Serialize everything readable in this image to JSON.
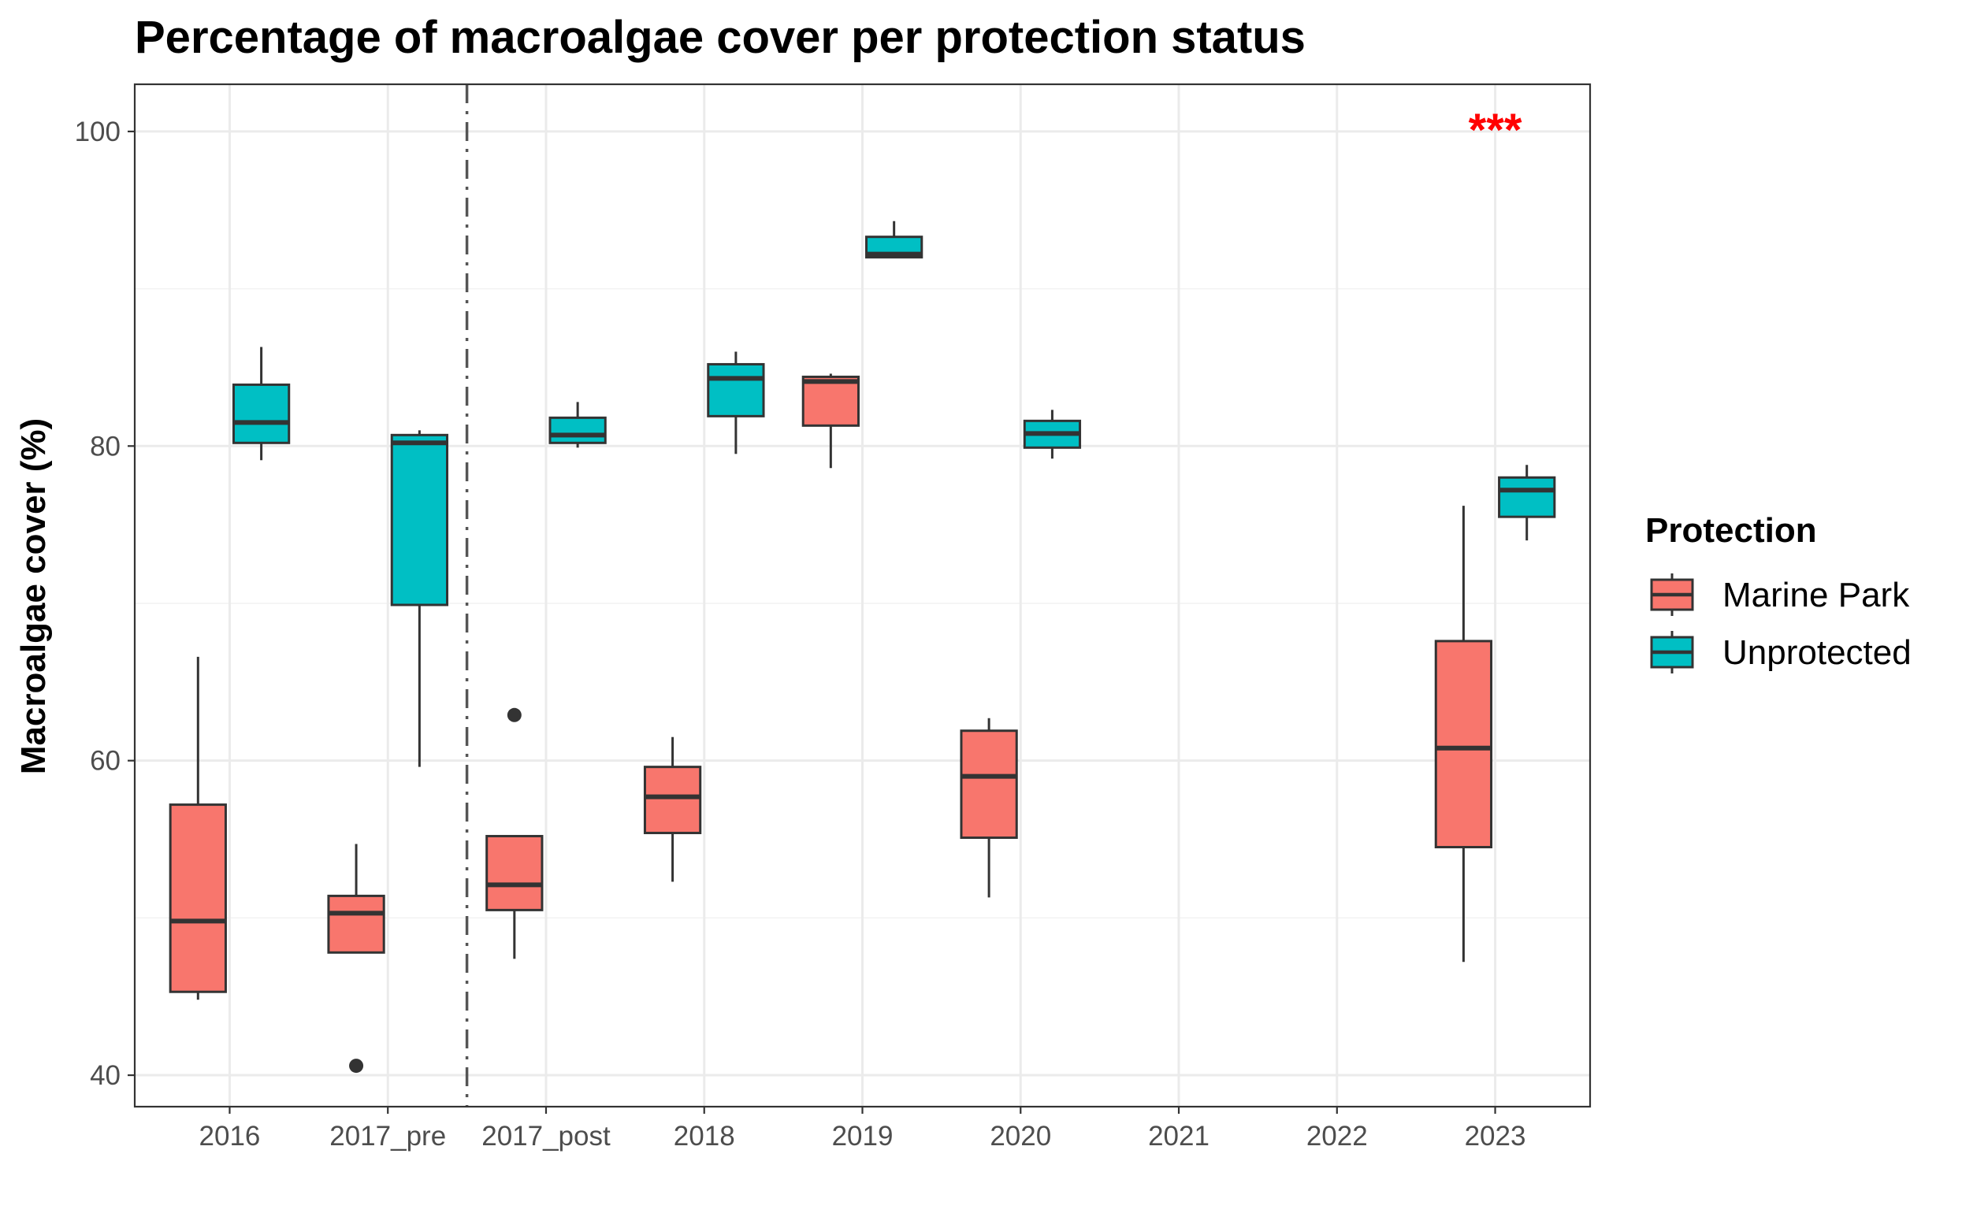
{
  "chart_data": {
    "type": "boxplot",
    "title": "Percentage of macroalgae cover per protection status",
    "xlabel": "",
    "ylabel": "Macroalgae cover (%)",
    "categories": [
      "2016",
      "2017_pre",
      "2017_post",
      "2018",
      "2019",
      "2020",
      "2021",
      "2022",
      "2023"
    ],
    "ylim": [
      38,
      103
    ],
    "yticks": [
      40,
      60,
      80,
      100
    ],
    "grid": true,
    "legend": {
      "title": "Protection",
      "position": "right",
      "entries": [
        "Marine Park",
        "Unprotected"
      ]
    },
    "series": [
      {
        "name": "Marine Park",
        "color": "#F8766D",
        "boxes": [
          {
            "category": "2016",
            "low": 44.8,
            "q1": 45.3,
            "median": 49.8,
            "q3": 57.2,
            "high": 66.6,
            "outliers": []
          },
          {
            "category": "2017_pre",
            "low": 47.8,
            "q1": 47.8,
            "median": 50.3,
            "q3": 51.4,
            "high": 54.7,
            "outliers": [
              40.6
            ]
          },
          {
            "category": "2017_post",
            "low": 47.4,
            "q1": 50.5,
            "median": 52.1,
            "q3": 55.2,
            "high": 55.2,
            "outliers": [
              62.9
            ]
          },
          {
            "category": "2018",
            "low": 52.3,
            "q1": 55.4,
            "median": 57.7,
            "q3": 59.6,
            "high": 61.5,
            "outliers": []
          },
          {
            "category": "2019",
            "low": 78.6,
            "q1": 81.3,
            "median": 84.1,
            "q3": 84.4,
            "high": 84.6,
            "outliers": []
          },
          {
            "category": "2020",
            "low": 51.3,
            "q1": 55.1,
            "median": 59.0,
            "q3": 61.9,
            "high": 62.7,
            "outliers": []
          },
          {
            "category": "2023",
            "low": 47.2,
            "q1": 54.5,
            "median": 60.8,
            "q3": 67.6,
            "high": 76.2,
            "outliers": []
          }
        ]
      },
      {
        "name": "Unprotected",
        "color": "#00BFC4",
        "boxes": [
          {
            "category": "2016",
            "low": 79.1,
            "q1": 80.2,
            "median": 81.5,
            "q3": 83.9,
            "high": 86.3,
            "outliers": []
          },
          {
            "category": "2017_pre",
            "low": 59.6,
            "q1": 69.9,
            "median": 80.2,
            "q3": 80.7,
            "high": 81.0,
            "outliers": []
          },
          {
            "category": "2017_post",
            "low": 79.9,
            "q1": 80.2,
            "median": 80.7,
            "q3": 81.8,
            "high": 82.8,
            "outliers": []
          },
          {
            "category": "2018",
            "low": 79.5,
            "q1": 81.9,
            "median": 84.3,
            "q3": 85.2,
            "high": 86.0,
            "outliers": []
          },
          {
            "category": "2019",
            "low": 92.0,
            "q1": 92.0,
            "median": 92.2,
            "q3": 93.3,
            "high": 94.3,
            "outliers": []
          },
          {
            "category": "2020",
            "low": 79.2,
            "q1": 79.9,
            "median": 80.8,
            "q3": 81.6,
            "high": 82.3,
            "outliers": []
          },
          {
            "category": "2023",
            "low": 74.0,
            "q1": 75.5,
            "median": 77.2,
            "q3": 78.0,
            "high": 78.8,
            "outliers": []
          }
        ]
      }
    ],
    "annotations": [
      {
        "text": "***",
        "category": "2023",
        "y": 100.2,
        "color": "#FF0000"
      }
    ],
    "vline": {
      "between": [
        "2017_pre",
        "2017_post"
      ],
      "style": "dashdot"
    }
  }
}
